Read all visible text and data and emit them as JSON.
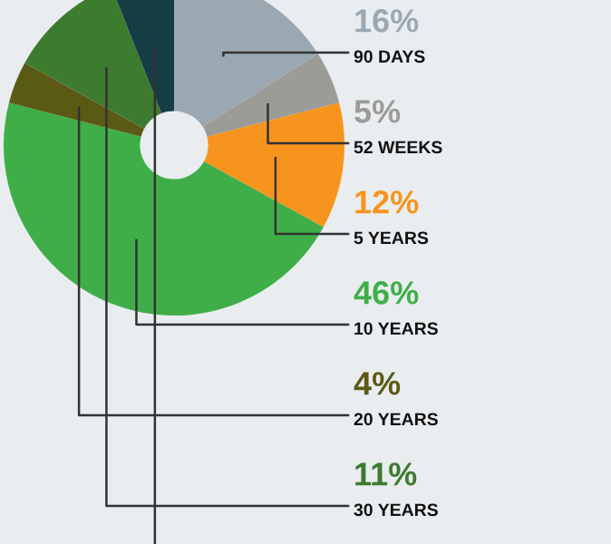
{
  "chart_data": {
    "type": "donut",
    "categories": [
      "90 DAYS",
      "52 WEEKS",
      "5 YEARS",
      "10 YEARS",
      "20 YEARS",
      "30 YEARS",
      null
    ],
    "values": [
      16,
      5,
      12,
      46,
      4,
      11,
      6
    ],
    "value_labels": [
      "16%",
      "5%",
      "12%",
      "46%",
      "4%",
      "11%",
      null
    ],
    "colors": [
      "#9ba8b1",
      "#9b9b98",
      "#f7941d",
      "#3fae49",
      "#5b5a14",
      "#3d7b2f",
      "#143d45"
    ]
  }
}
